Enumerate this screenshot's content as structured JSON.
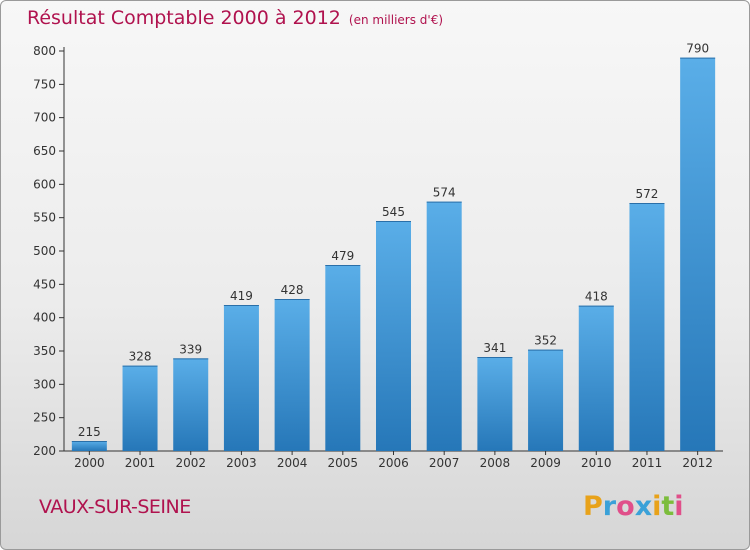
{
  "header": {
    "title": "Résultat Comptable 2000 à 2012",
    "subtitle": "(en milliers d'€)"
  },
  "footer": {
    "commune": "VAUX-SUR-SEINE",
    "brand": "Proxiti",
    "brand_letter_colors": [
      "#e8a21a",
      "#3aa1d8",
      "#e04f8a",
      "#3aa1d8",
      "#e8a21a",
      "#7cbd3c",
      "#e04f8a"
    ]
  },
  "colors": {
    "title": "#b0124e",
    "bar_light": "#5aaee8",
    "bar_dark": "#2677b8",
    "axis": "#333333"
  },
  "chart_data": {
    "type": "bar",
    "title": "Résultat Comptable 2000 à 2012",
    "categories": [
      "2000",
      "2001",
      "2002",
      "2003",
      "2004",
      "2005",
      "2006",
      "2007",
      "2008",
      "2009",
      "2010",
      "2011",
      "2012"
    ],
    "values": [
      215,
      328,
      339,
      419,
      428,
      479,
      545,
      574,
      341,
      352,
      418,
      572,
      790
    ],
    "ylim": [
      200,
      800
    ],
    "yticks": [
      200,
      250,
      300,
      350,
      400,
      450,
      500,
      550,
      600,
      650,
      700,
      750,
      800
    ],
    "data_labels": true,
    "grid": false,
    "legend": "none"
  }
}
